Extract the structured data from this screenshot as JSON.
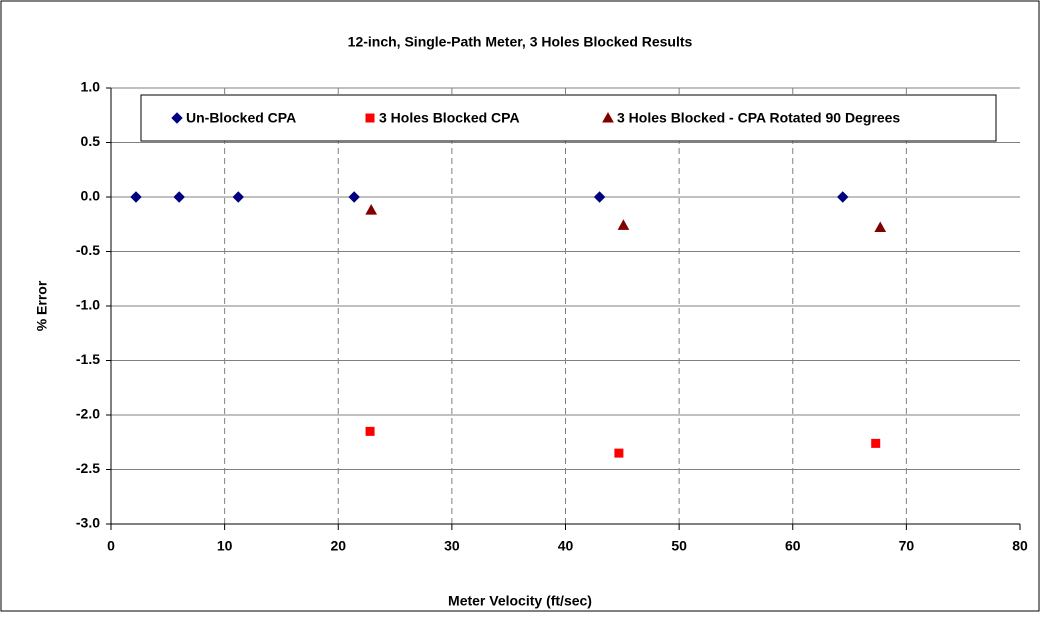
{
  "chart_data": {
    "type": "scatter",
    "title": "12-inch, Single-Path Meter, 3 Holes Blocked Results",
    "xlabel": "Meter Velocity (ft/sec)",
    "ylabel": "% Error",
    "xlim": [
      0,
      80
    ],
    "xticks": [
      0,
      10,
      20,
      30,
      40,
      50,
      60,
      70,
      80
    ],
    "ylim": [
      -3.0,
      1.0
    ],
    "yticks": [
      {
        "value": -3.0,
        "label": "-3.0"
      },
      {
        "value": -2.5,
        "label": "-2.5"
      },
      {
        "value": -2.0,
        "label": "-2.0"
      },
      {
        "value": -1.5,
        "label": "-1.5"
      },
      {
        "value": -1.0,
        "label": "-1.0"
      },
      {
        "value": -0.5,
        "label": "-0.5"
      },
      {
        "value": 0.0,
        "label": "0.0"
      },
      {
        "value": 0.5,
        "label": "0.5"
      },
      {
        "value": 1.0,
        "label": "1.0"
      }
    ],
    "grid": true,
    "legend": "top",
    "series": [
      {
        "name": "Un-Blocked CPA",
        "color": "#000080",
        "marker": "diamond",
        "x": [
          2.2,
          6.0,
          11.2,
          21.4,
          43.0,
          64.4
        ],
        "values": [
          0,
          0,
          0,
          0,
          0,
          0
        ]
      },
      {
        "name": "3 Holes Blocked CPA",
        "color": "#ff0000",
        "marker": "square",
        "x": [
          22.8,
          44.7,
          67.3
        ],
        "values": [
          -2.15,
          -2.35,
          -2.26
        ]
      },
      {
        "name": "3 Holes Blocked - CPA Rotated 90 Degrees",
        "color": "#800000",
        "marker": "triangle",
        "x": [
          22.9,
          45.1,
          67.7
        ],
        "values": [
          -0.12,
          -0.26,
          -0.28
        ]
      }
    ]
  }
}
